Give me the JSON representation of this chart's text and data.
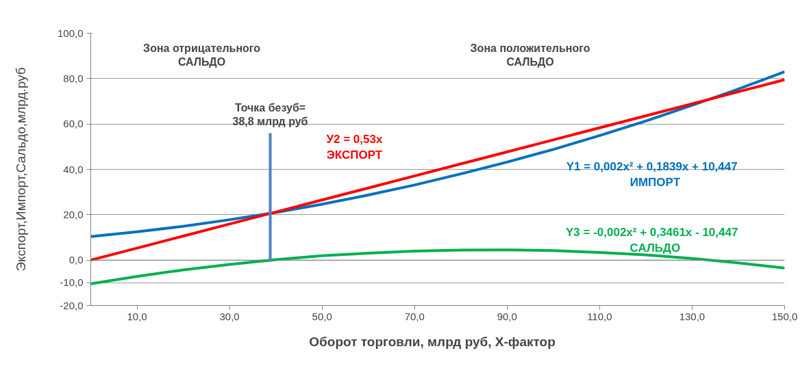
{
  "chart_data": {
    "type": "line",
    "xlabel": "Оборот торговли, млрд руб,    X-фактор",
    "ylabel": "Экспорт,Импорт,Сальдо,млрд.руб",
    "x": [
      0,
      10,
      20,
      30,
      40,
      50,
      60,
      70,
      80,
      90,
      100,
      110,
      120,
      130,
      140,
      150
    ],
    "xlim": [
      0,
      150
    ],
    "xticks": [
      {
        "value": 10,
        "label": "10,0"
      },
      {
        "value": 30,
        "label": "30,0"
      },
      {
        "value": 50,
        "label": "50,0"
      },
      {
        "value": 70,
        "label": "70,0"
      },
      {
        "value": 90,
        "label": "90,0"
      },
      {
        "value": 110,
        "label": "110,0"
      },
      {
        "value": 130,
        "label": "130,0"
      },
      {
        "value": 150,
        "label": "150,0"
      }
    ],
    "ylim": [
      -20,
      100
    ],
    "yticks": [
      {
        "value": -20,
        "label": "-20,0"
      },
      {
        "value": -10,
        "label": "-10,0"
      },
      {
        "value": 0,
        "label": "0,0"
      },
      {
        "value": 20,
        "label": "20,0"
      },
      {
        "value": 40,
        "label": "40,0"
      },
      {
        "value": 60,
        "label": "60,0"
      },
      {
        "value": 80,
        "label": "80,0"
      },
      {
        "value": 100,
        "label": "100,0"
      }
    ],
    "grid": "y",
    "marker": "none",
    "line_style": "solid",
    "series": [
      {
        "name": "Y1 = 0,002x²  + 0,1839x  + 10,447\nИМПОРТ",
        "color": "#0070c0",
        "values": [
          10.4,
          12.5,
          14.9,
          17.8,
          21.0,
          24.6,
          28.7,
          33.1,
          38.0,
          43.2,
          48.8,
          54.9,
          61.3,
          68.2,
          75.4,
          83.0
        ]
      },
      {
        "name": "У2 = 0,53х\nЭКСПОРТ",
        "color": "#ff0000",
        "values": [
          0,
          5.3,
          10.6,
          15.9,
          21.2,
          26.5,
          31.8,
          37.1,
          42.4,
          47.7,
          53.0,
          58.3,
          63.6,
          68.9,
          74.2,
          79.5
        ]
      },
      {
        "name": "Y3 = -0,002x²  + 0,3461x  - 10,447\nСАЛЬДО",
        "color": "#00b050",
        "values": [
          -10.4,
          -7.2,
          -4.3,
          -1.9,
          0.2,
          1.9,
          3.1,
          4.0,
          4.4,
          4.5,
          4.2,
          3.4,
          2.3,
          0.7,
          -1.2,
          -3.5
        ]
      },
      {
        "type": "line",
        "color": "#4f81bd",
        "x": [
          38.8,
          38.8
        ],
        "values": [
          0,
          56
        ]
      }
    ],
    "annotations": [
      "Зона отрицательного\nСАЛЬДО",
      "Зона положительного\nСАЛЬДО",
      {
        "text": "Точка безуб=\n38,8 млрд руб",
        "x": 38.8,
        "y": 56
      }
    ]
  }
}
